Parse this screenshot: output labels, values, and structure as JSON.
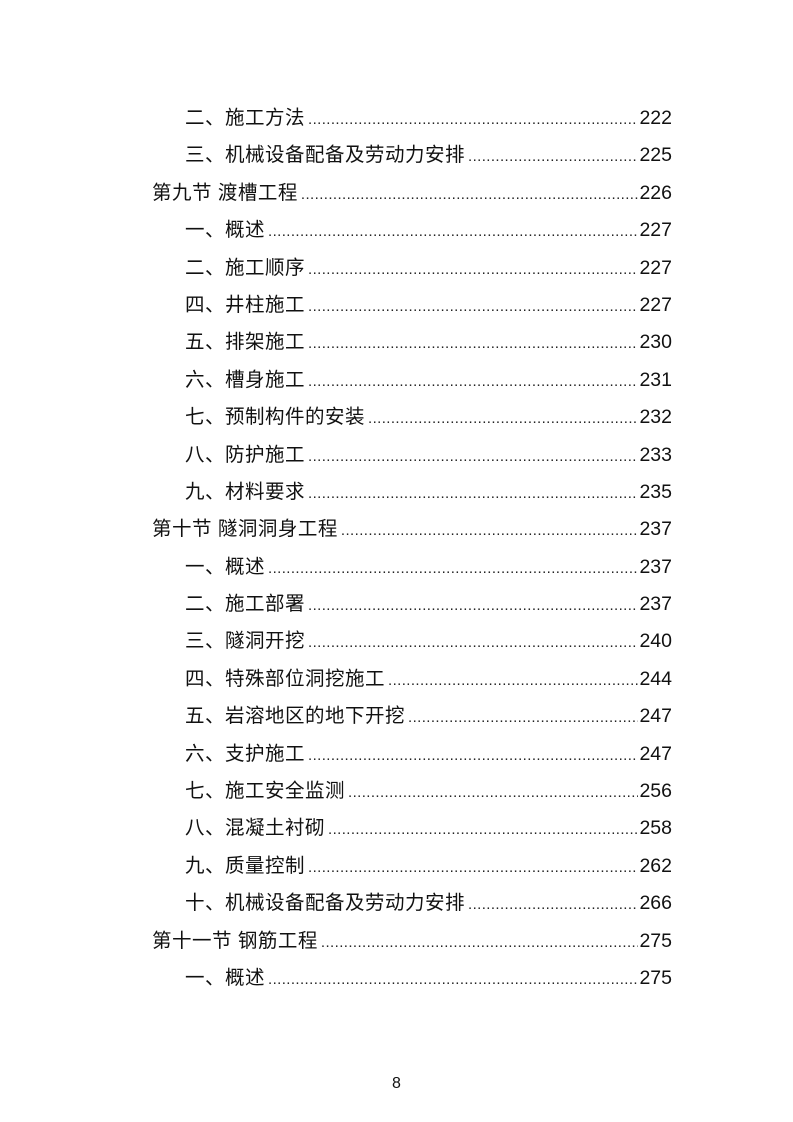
{
  "toc": [
    {
      "level": "item",
      "label": "二、施工方法",
      "page": "222"
    },
    {
      "level": "item",
      "label": "三、机械设备配备及劳动力安排",
      "page": "225"
    },
    {
      "level": "section",
      "label": "第九节  渡槽工程",
      "page": "226"
    },
    {
      "level": "item",
      "label": "一、概述",
      "page": "227"
    },
    {
      "level": "item",
      "label": "二、施工顺序",
      "page": "227"
    },
    {
      "level": "item",
      "label": "四、井柱施工",
      "page": "227"
    },
    {
      "level": "item",
      "label": "五、排架施工",
      "page": "230"
    },
    {
      "level": "item",
      "label": "六、槽身施工",
      "page": "231"
    },
    {
      "level": "item",
      "label": "七、预制构件的安装",
      "page": "232"
    },
    {
      "level": "item",
      "label": "八、防护施工",
      "page": "233"
    },
    {
      "level": "item",
      "label": "九、材料要求",
      "page": "235"
    },
    {
      "level": "section",
      "label": "第十节  隧洞洞身工程",
      "page": "237"
    },
    {
      "level": "item",
      "label": "一、概述",
      "page": "237"
    },
    {
      "level": "item",
      "label": "二、施工部署",
      "page": "237"
    },
    {
      "level": "item",
      "label": "三、隧洞开挖",
      "page": "240"
    },
    {
      "level": "item",
      "label": "四、特殊部位洞挖施工",
      "page": "244"
    },
    {
      "level": "item",
      "label": "五、岩溶地区的地下开挖",
      "page": "247"
    },
    {
      "level": "item",
      "label": "六、支护施工",
      "page": "247"
    },
    {
      "level": "item",
      "label": "七、施工安全监测",
      "page": "256"
    },
    {
      "level": "item",
      "label": "八、混凝土衬砌",
      "page": "258"
    },
    {
      "level": "item",
      "label": "九、质量控制",
      "page": "262"
    },
    {
      "level": "item",
      "label": "十、机械设备配备及劳动力安排",
      "page": "266"
    },
    {
      "level": "section",
      "label": "第十一节  钢筋工程",
      "page": "275"
    },
    {
      "level": "item",
      "label": "一、概述",
      "page": "275"
    }
  ],
  "page_number": "8"
}
